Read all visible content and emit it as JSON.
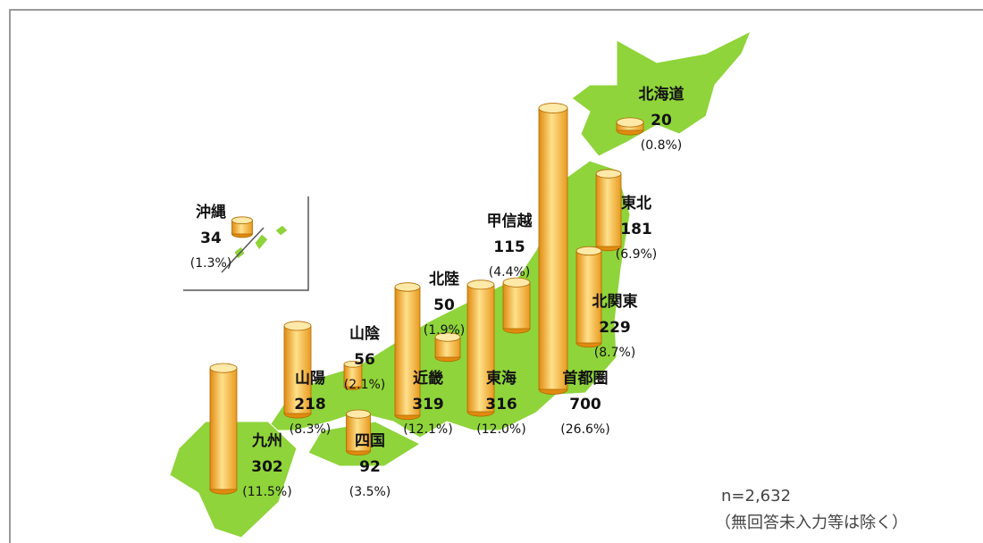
{
  "chart_data": {
    "type": "cylinder",
    "categories": [
      "北海道",
      "東北",
      "甲信越",
      "北陸",
      "北関東",
      "山陰",
      "山陽",
      "近畿",
      "東海",
      "首都圏",
      "九州",
      "四国",
      "沖縄"
    ],
    "values": [
      20,
      181,
      115,
      50,
      229,
      56,
      218,
      319,
      316,
      700,
      302,
      92,
      34
    ],
    "share_labels": [
      "(0.8%)",
      "(6.9%)",
      "(4.4%)",
      "(1.9%)",
      "(8.7%)",
      "(2.1%)",
      "(8.3%)",
      "(12.1%)",
      "(12.0%)",
      "(26.6%)",
      "(11.5%)",
      "(3.5%)",
      "(1.3%)"
    ],
    "color": "#f5b335",
    "notes": [
      "n=2,632",
      "（無回答未入力等は除く）"
    ]
  }
}
